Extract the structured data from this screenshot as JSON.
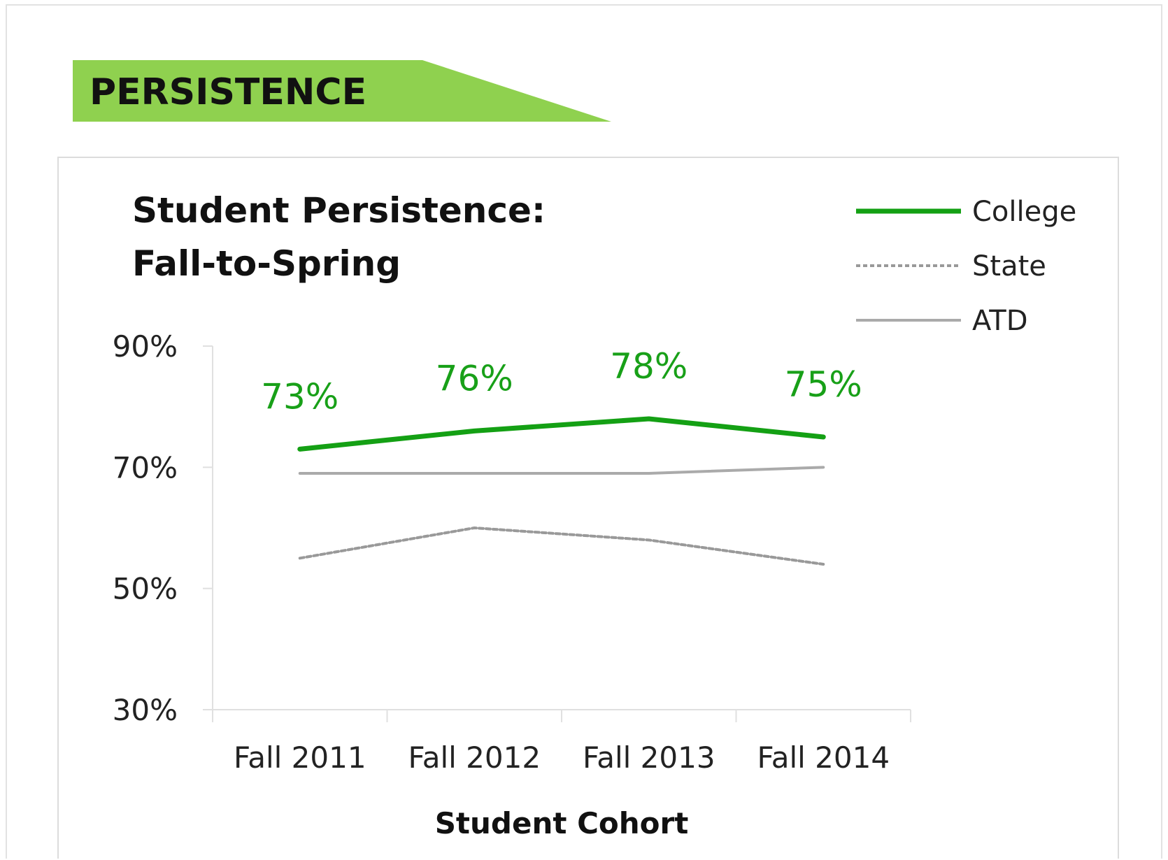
{
  "banner": {
    "label": "PERSISTENCE",
    "color": "#8fd14f"
  },
  "chart_data": {
    "type": "line",
    "title_lines": [
      "Student Persistence:",
      "Fall-to-Spring"
    ],
    "xlabel": "Student Cohort",
    "ylabel": "",
    "categories": [
      "Fall 2011",
      "Fall 2012",
      "Fall 2013",
      "Fall 2014"
    ],
    "ylim": [
      30,
      90
    ],
    "yticks": [
      30,
      50,
      70,
      90
    ],
    "ytick_labels": [
      "30%",
      "50%",
      "70%",
      "90%"
    ],
    "grid": false,
    "legend_position": "top-right",
    "series": [
      {
        "name": "College",
        "values": [
          73,
          76,
          78,
          75
        ],
        "labels": [
          "73%",
          "76%",
          "78%",
          "75%"
        ],
        "color": "#14a014",
        "style": "solid"
      },
      {
        "name": "State",
        "values": [
          55,
          60,
          58,
          54
        ],
        "color": "#999999",
        "style": "dashed"
      },
      {
        "name": "ATD",
        "values": [
          69,
          69,
          69,
          70
        ],
        "color": "#aaaaaa",
        "style": "solid"
      }
    ]
  }
}
